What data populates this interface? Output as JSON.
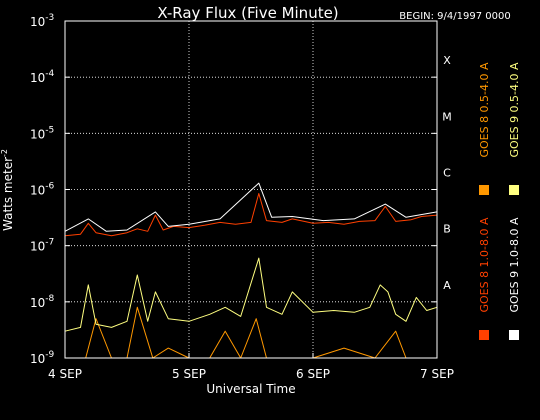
{
  "chart_data": {
    "type": "line",
    "title": "X-Ray Flux (Five Minute)",
    "begin_label": "BEGIN: 9/4/1997 0000",
    "xlabel": "Universal Time",
    "ylabel": "Watts meter^-2",
    "ylabel_text": "Watts meter",
    "ylabel_sup": "-2",
    "x_scale": "time",
    "x_range": [
      "1997-09-04 00:00",
      "1997-09-07 00:00"
    ],
    "x_ticks": [
      {
        "date": "1997-09-04",
        "label": "4 SEP"
      },
      {
        "date": "1997-09-05",
        "label": "5 SEP"
      },
      {
        "date": "1997-09-06",
        "label": "6 SEP"
      },
      {
        "date": "1997-09-07",
        "label": "7 SEP"
      }
    ],
    "y_scale": "log",
    "ylim": [
      1e-09,
      0.001
    ],
    "y_ticks": [
      {
        "value": 1e-09,
        "base": "10",
        "exp": "-9"
      },
      {
        "value": 1e-08,
        "base": "10",
        "exp": "-8"
      },
      {
        "value": 1e-07,
        "base": "10",
        "exp": "-7"
      },
      {
        "value": 1e-06,
        "base": "10",
        "exp": "-6"
      },
      {
        "value": 1e-05,
        "base": "10",
        "exp": "-5"
      },
      {
        "value": 0.0001,
        "base": "10",
        "exp": "-4"
      },
      {
        "value": 0.001,
        "base": "10",
        "exp": "-3"
      }
    ],
    "flare_classes": [
      {
        "label": "A",
        "value": 1e-08
      },
      {
        "label": "B",
        "value": 1e-07
      },
      {
        "label": "C",
        "value": 1e-06
      },
      {
        "label": "M",
        "value": 1e-05
      },
      {
        "label": "X",
        "value": 0.0001
      }
    ],
    "grid": {
      "horizontal": true,
      "vertical": true,
      "style": "dotted"
    },
    "legend_position": "right",
    "series": [
      {
        "name": "GOES 8 1.0-8.0 A",
        "color": "#ff4000",
        "points": [
          [
            "1997-09-04 00:00",
            1.5e-07
          ],
          [
            "1997-09-04 03:00",
            1.6e-07
          ],
          [
            "1997-09-04 04:30",
            2.5e-07
          ],
          [
            "1997-09-04 06:00",
            1.7e-07
          ],
          [
            "1997-09-04 09:00",
            1.5e-07
          ],
          [
            "1997-09-04 12:00",
            1.7e-07
          ],
          [
            "1997-09-04 14:00",
            2e-07
          ],
          [
            "1997-09-04 16:00",
            1.8e-07
          ],
          [
            "1997-09-04 17:30",
            3.5e-07
          ],
          [
            "1997-09-04 19:00",
            1.9e-07
          ],
          [
            "1997-09-04 21:00",
            2.2e-07
          ],
          [
            "1997-09-05 00:00",
            2.1e-07
          ],
          [
            "1997-09-05 03:00",
            2.3e-07
          ],
          [
            "1997-09-05 06:00",
            2.6e-07
          ],
          [
            "1997-09-05 09:00",
            2.4e-07
          ],
          [
            "1997-09-05 12:00",
            2.6e-07
          ],
          [
            "1997-09-05 13:30",
            8.5e-07
          ],
          [
            "1997-09-05 15:00",
            2.8e-07
          ],
          [
            "1997-09-05 18:00",
            2.6e-07
          ],
          [
            "1997-09-05 20:00",
            3e-07
          ],
          [
            "1997-09-06 00:00",
            2.5e-07
          ],
          [
            "1997-09-06 03:00",
            2.6e-07
          ],
          [
            "1997-09-06 06:00",
            2.4e-07
          ],
          [
            "1997-09-06 09:00",
            2.7e-07
          ],
          [
            "1997-09-06 12:00",
            2.8e-07
          ],
          [
            "1997-09-06 14:00",
            5e-07
          ],
          [
            "1997-09-06 16:00",
            2.7e-07
          ],
          [
            "1997-09-06 19:00",
            2.9e-07
          ],
          [
            "1997-09-06 21:00",
            3.3e-07
          ],
          [
            "1997-09-07 00:00",
            3.5e-07
          ]
        ]
      },
      {
        "name": "GOES 8 0.5-4.0 A",
        "color": "#ff9800",
        "points": [
          [
            "1997-09-04 00:00",
            1e-09
          ],
          [
            "1997-09-04 04:00",
            1e-09
          ],
          [
            "1997-09-04 06:00",
            5e-09
          ],
          [
            "1997-09-04 09:00",
            1e-09
          ],
          [
            "1997-09-04 12:00",
            1e-09
          ],
          [
            "1997-09-04 14:00",
            8e-09
          ],
          [
            "1997-09-04 17:00",
            1e-09
          ],
          [
            "1997-09-04 20:00",
            1.5e-09
          ],
          [
            "1997-09-05 00:00",
            1e-09
          ],
          [
            "1997-09-05 04:00",
            1e-09
          ],
          [
            "1997-09-05 07:00",
            3e-09
          ],
          [
            "1997-09-05 10:00",
            1e-09
          ],
          [
            "1997-09-05 13:00",
            5e-09
          ],
          [
            "1997-09-05 15:00",
            1e-09
          ],
          [
            "1997-09-05 18:00",
            1e-09
          ],
          [
            "1997-09-06 00:00",
            1e-09
          ],
          [
            "1997-09-06 06:00",
            1.5e-09
          ],
          [
            "1997-09-06 12:00",
            1e-09
          ],
          [
            "1997-09-06 16:00",
            3e-09
          ],
          [
            "1997-09-06 18:00",
            1e-09
          ],
          [
            "1997-09-07 00:00",
            1e-09
          ]
        ]
      },
      {
        "name": "GOES 9 1.0-8.0 A",
        "color": "#ffffff",
        "points": [
          [
            "1997-09-04 00:00",
            1.8e-07
          ],
          [
            "1997-09-04 04:30",
            3e-07
          ],
          [
            "1997-09-04 08:00",
            1.8e-07
          ],
          [
            "1997-09-04 12:00",
            1.9e-07
          ],
          [
            "1997-09-04 17:30",
            4e-07
          ],
          [
            "1997-09-04 20:00",
            2.2e-07
          ],
          [
            "1997-09-05 00:00",
            2.4e-07
          ],
          [
            "1997-09-05 06:00",
            3e-07
          ],
          [
            "1997-09-05 13:30",
            1.3e-06
          ],
          [
            "1997-09-05 16:00",
            3.2e-07
          ],
          [
            "1997-09-05 20:00",
            3.3e-07
          ],
          [
            "1997-09-06 02:00",
            2.8e-07
          ],
          [
            "1997-09-06 08:00",
            3e-07
          ],
          [
            "1997-09-06 14:00",
            5.5e-07
          ],
          [
            "1997-09-06 18:00",
            3.2e-07
          ],
          [
            "1997-09-07 00:00",
            4e-07
          ]
        ]
      },
      {
        "name": "GOES 9 0.5-4.0 A",
        "color": "#ffff80",
        "points": [
          [
            "1997-09-04 00:00",
            3e-09
          ],
          [
            "1997-09-04 03:00",
            3.5e-09
          ],
          [
            "1997-09-04 04:30",
            2e-08
          ],
          [
            "1997-09-04 06:00",
            4e-09
          ],
          [
            "1997-09-04 09:00",
            3.5e-09
          ],
          [
            "1997-09-04 12:00",
            4.5e-09
          ],
          [
            "1997-09-04 14:00",
            3e-08
          ],
          [
            "1997-09-04 16:00",
            4.5e-09
          ],
          [
            "1997-09-04 17:30",
            1.5e-08
          ],
          [
            "1997-09-04 20:00",
            5e-09
          ],
          [
            "1997-09-05 00:00",
            4.5e-09
          ],
          [
            "1997-09-05 04:00",
            6e-09
          ],
          [
            "1997-09-05 07:00",
            8e-09
          ],
          [
            "1997-09-05 10:00",
            5.5e-09
          ],
          [
            "1997-09-05 13:30",
            6e-08
          ],
          [
            "1997-09-05 15:00",
            8e-09
          ],
          [
            "1997-09-05 18:00",
            6e-09
          ],
          [
            "1997-09-05 20:00",
            1.5e-08
          ],
          [
            "1997-09-06 00:00",
            6.5e-09
          ],
          [
            "1997-09-06 04:00",
            7e-09
          ],
          [
            "1997-09-06 08:00",
            6.5e-09
          ],
          [
            "1997-09-06 11:00",
            8e-09
          ],
          [
            "1997-09-06 13:00",
            2e-08
          ],
          [
            "1997-09-06 14:30",
            1.5e-08
          ],
          [
            "1997-09-06 16:00",
            6e-09
          ],
          [
            "1997-09-06 18:00",
            4.5e-09
          ],
          [
            "1997-09-06 20:00",
            1.2e-08
          ],
          [
            "1997-09-06 22:00",
            7e-09
          ],
          [
            "1997-09-07 00:00",
            8e-09
          ]
        ]
      }
    ]
  }
}
